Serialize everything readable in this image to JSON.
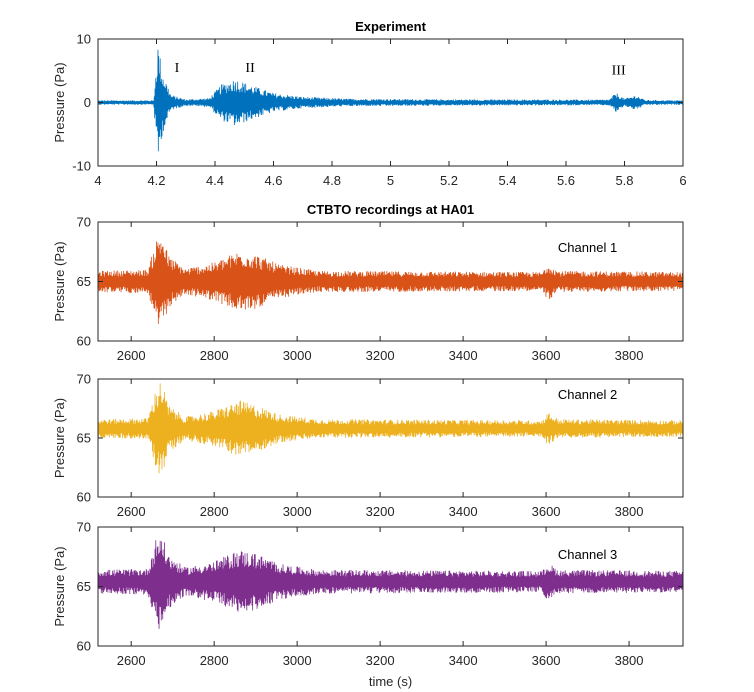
{
  "chart_data": [
    {
      "type": "line",
      "title": "Experiment",
      "ylabel": "Pressure (Pa)",
      "xlabel": "",
      "xlim": [
        4,
        6
      ],
      "ylim": [
        -10,
        10
      ],
      "xticks": [
        4,
        4.2,
        4.4,
        4.6,
        4.8,
        5,
        5.2,
        5.4,
        5.6,
        5.8,
        6
      ],
      "xtick_labels": [
        "4",
        "4.2",
        "4.4",
        "4.6",
        "4.8",
        "5",
        "5.2",
        "5.4",
        "5.6",
        "5.8",
        "6"
      ],
      "yticks": [
        -10,
        0,
        10
      ],
      "ytick_labels": [
        "-10",
        "0",
        "10"
      ],
      "color": "#0072bd",
      "baseline": 0,
      "envelope": [
        {
          "x": 4.0,
          "amp": 0.35
        },
        {
          "x": 4.19,
          "amp": 0.35
        },
        {
          "x": 4.205,
          "amp": 9.5
        },
        {
          "x": 4.22,
          "amp": 5.0
        },
        {
          "x": 4.25,
          "amp": 1.2
        },
        {
          "x": 4.3,
          "amp": 0.5
        },
        {
          "x": 4.38,
          "amp": 0.7
        },
        {
          "x": 4.42,
          "amp": 2.8
        },
        {
          "x": 4.47,
          "amp": 3.8
        },
        {
          "x": 4.52,
          "amp": 2.8
        },
        {
          "x": 4.6,
          "amp": 1.5
        },
        {
          "x": 4.7,
          "amp": 0.9
        },
        {
          "x": 4.85,
          "amp": 0.6
        },
        {
          "x": 5.2,
          "amp": 0.5
        },
        {
          "x": 5.7,
          "amp": 0.45
        },
        {
          "x": 5.75,
          "amp": 0.5
        },
        {
          "x": 5.77,
          "amp": 1.6
        },
        {
          "x": 5.8,
          "amp": 0.6
        },
        {
          "x": 5.84,
          "amp": 1.2
        },
        {
          "x": 5.87,
          "amp": 0.4
        },
        {
          "x": 6.0,
          "amp": 0.35
        }
      ],
      "annotations": [
        {
          "text": "I",
          "x": 4.27,
          "y": 4.8,
          "style": "roman"
        },
        {
          "text": "II",
          "x": 4.52,
          "y": 4.8,
          "style": "roman"
        },
        {
          "text": "III",
          "x": 5.78,
          "y": 4.4,
          "style": "roman"
        }
      ]
    },
    {
      "type": "line",
      "title": "CTBTO recordings at HA01",
      "ylabel": "Pressure (Pa)",
      "xlabel": "",
      "xlim": [
        2520,
        3930
      ],
      "ylim": [
        60,
        70
      ],
      "xticks": [
        2600,
        2800,
        3000,
        3200,
        3400,
        3600,
        3800
      ],
      "xtick_labels": [
        "2600",
        "2800",
        "3000",
        "3200",
        "3400",
        "3600",
        "3800"
      ],
      "yticks": [
        60,
        65,
        70
      ],
      "ytick_labels": [
        "60",
        "65",
        "70"
      ],
      "color": "#d95319",
      "baseline": 65,
      "envelope": [
        {
          "x": 2520,
          "amp": 0.9
        },
        {
          "x": 2640,
          "amp": 1.0
        },
        {
          "x": 2660,
          "amp": 3.5
        },
        {
          "x": 2672,
          "amp": 4.4
        },
        {
          "x": 2690,
          "amp": 2.2
        },
        {
          "x": 2730,
          "amp": 1.1
        },
        {
          "x": 2800,
          "amp": 1.6
        },
        {
          "x": 2860,
          "amp": 2.6
        },
        {
          "x": 2900,
          "amp": 2.3
        },
        {
          "x": 2960,
          "amp": 1.4
        },
        {
          "x": 3050,
          "amp": 0.9
        },
        {
          "x": 3590,
          "amp": 0.8
        },
        {
          "x": 3605,
          "amp": 1.6
        },
        {
          "x": 3630,
          "amp": 0.9
        },
        {
          "x": 3930,
          "amp": 0.8
        }
      ],
      "annotations": [
        {
          "text": "Channel 1",
          "x": 3700,
          "y": 67.5,
          "style": "sans"
        }
      ]
    },
    {
      "type": "line",
      "title": "",
      "ylabel": "Pressure (Pa)",
      "xlabel": "",
      "xlim": [
        2520,
        3930
      ],
      "ylim": [
        60,
        70
      ],
      "xticks": [
        2600,
        2800,
        3000,
        3200,
        3400,
        3600,
        3800
      ],
      "xtick_labels": [
        "2600",
        "2800",
        "3000",
        "3200",
        "3400",
        "3600",
        "3800"
      ],
      "yticks": [
        60,
        65,
        70
      ],
      "ytick_labels": [
        "60",
        "65",
        "70"
      ],
      "color": "#edb120",
      "baseline": 65.8,
      "envelope": [
        {
          "x": 2520,
          "amp": 0.8
        },
        {
          "x": 2640,
          "amp": 0.9
        },
        {
          "x": 2660,
          "amp": 3.4
        },
        {
          "x": 2672,
          "amp": 4.2
        },
        {
          "x": 2690,
          "amp": 2.0
        },
        {
          "x": 2730,
          "amp": 1.0
        },
        {
          "x": 2800,
          "amp": 1.5
        },
        {
          "x": 2860,
          "amp": 2.4
        },
        {
          "x": 2900,
          "amp": 2.0
        },
        {
          "x": 2960,
          "amp": 1.2
        },
        {
          "x": 3050,
          "amp": 0.8
        },
        {
          "x": 3590,
          "amp": 0.7
        },
        {
          "x": 3605,
          "amp": 1.4
        },
        {
          "x": 3630,
          "amp": 0.8
        },
        {
          "x": 3930,
          "amp": 0.7
        }
      ],
      "annotations": [
        {
          "text": "Channel 2",
          "x": 3700,
          "y": 68.3,
          "style": "sans"
        }
      ]
    },
    {
      "type": "line",
      "title": "",
      "ylabel": "Pressure (Pa)",
      "xlabel": "time (s)",
      "xlim": [
        2520,
        3930
      ],
      "ylim": [
        60,
        70
      ],
      "xticks": [
        2600,
        2800,
        3000,
        3200,
        3400,
        3600,
        3800
      ],
      "xtick_labels": [
        "2600",
        "2800",
        "3000",
        "3200",
        "3400",
        "3600",
        "3800"
      ],
      "yticks": [
        60,
        65,
        70
      ],
      "ytick_labels": [
        "60",
        "65",
        "70"
      ],
      "color": "#7e2f8e",
      "baseline": 65.4,
      "envelope": [
        {
          "x": 2520,
          "amp": 1.0
        },
        {
          "x": 2640,
          "amp": 1.1
        },
        {
          "x": 2660,
          "amp": 3.7
        },
        {
          "x": 2672,
          "amp": 4.2
        },
        {
          "x": 2690,
          "amp": 2.3
        },
        {
          "x": 2730,
          "amp": 1.2
        },
        {
          "x": 2800,
          "amp": 1.7
        },
        {
          "x": 2860,
          "amp": 2.7
        },
        {
          "x": 2900,
          "amp": 2.4
        },
        {
          "x": 2960,
          "amp": 1.5
        },
        {
          "x": 3050,
          "amp": 1.0
        },
        {
          "x": 3590,
          "amp": 0.9
        },
        {
          "x": 3605,
          "amp": 1.6
        },
        {
          "x": 3630,
          "amp": 1.0
        },
        {
          "x": 3930,
          "amp": 0.9
        }
      ],
      "annotations": [
        {
          "text": "Channel 3",
          "x": 3700,
          "y": 67.3,
          "style": "sans"
        }
      ]
    }
  ]
}
